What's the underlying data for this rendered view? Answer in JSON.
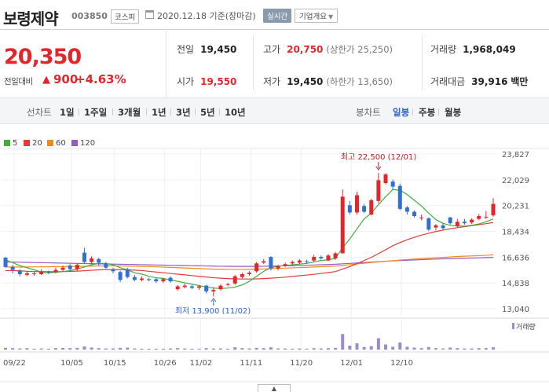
{
  "header": {
    "name": "보령제약",
    "code": "003850",
    "market": "코스피",
    "date": "2020.12.18 기준(장마감)",
    "realtime": "실시간",
    "overview": "기업개요"
  },
  "price": {
    "current": "20,350",
    "prev_label": "전일대비",
    "change_arrow": "▲",
    "change": "900",
    "change_pct": "+4.63%"
  },
  "stats": {
    "prev_close": {
      "label": "전일",
      "value": "19,450"
    },
    "open": {
      "label": "시가",
      "value": "19,550"
    },
    "high": {
      "label": "고가",
      "value": "20,750",
      "sub": "(상한가 25,250)"
    },
    "low": {
      "label": "저가",
      "value": "19,450",
      "sub": "(하한가 13,650)"
    },
    "volume": {
      "label": "거래량",
      "value": "1,968,049"
    },
    "amount": {
      "label": "거래대금",
      "value": "39,916",
      "unit": "백만"
    }
  },
  "toolbar": {
    "line_chart": "선차트",
    "periods": [
      "1일",
      "1주일",
      "3개월",
      "1년",
      "3년",
      "5년",
      "10년"
    ],
    "candle_chart": "봉차트",
    "candle_periods": [
      "일봉",
      "주봉",
      "월봉"
    ],
    "active_candle": "일봉"
  },
  "colors": {
    "up": "#e3262b",
    "down": "#2f6fd6",
    "ma5": "#3fae3a",
    "ma20": "#e33a3a",
    "ma60": "#f08a1c",
    "ma120": "#9b59c4",
    "volume": "#9b8ad3"
  },
  "chart_data": {
    "type": "candlestick",
    "legend": [
      {
        "name": "5",
        "color": "#3fae3a"
      },
      {
        "name": "20",
        "color": "#e33a3a"
      },
      {
        "name": "60",
        "color": "#f08a1c"
      },
      {
        "name": "120",
        "color": "#9b59c4"
      }
    ],
    "y_ticks": [
      "23,827",
      "22,029",
      "20,231",
      "18,434",
      "16,636",
      "14,838",
      "13,040"
    ],
    "ylim": [
      13040,
      23827
    ],
    "x_ticks": [
      "09/22",
      "10/05",
      "10/15",
      "10/26",
      "11/02",
      "11/11",
      "11/20",
      "12/01",
      "12/10"
    ],
    "max_label": "최고 22,500 (12/01)",
    "min_label": "최저 13,900 (11/02)",
    "volume_label": "거래량",
    "candles": [
      {
        "o": 16600,
        "c": 15950,
        "h": 16650,
        "l": 15900,
        "v": 0.06
      },
      {
        "o": 15950,
        "c": 15750,
        "h": 16100,
        "l": 15500,
        "v": 0.05
      },
      {
        "o": 15700,
        "c": 15450,
        "h": 15800,
        "l": 15300,
        "v": 0.04
      },
      {
        "o": 15400,
        "c": 15500,
        "h": 15650,
        "l": 15300,
        "v": 0.05
      },
      {
        "o": 15500,
        "c": 15500,
        "h": 15600,
        "l": 15350,
        "v": 0.03
      },
      {
        "o": 15450,
        "c": 15650,
        "h": 15800,
        "l": 15400,
        "v": 0.04
      },
      {
        "o": 15600,
        "c": 15550,
        "h": 15700,
        "l": 15450,
        "v": 0.03
      },
      {
        "o": 15600,
        "c": 15750,
        "h": 15900,
        "l": 15500,
        "v": 0.05
      },
      {
        "o": 15750,
        "c": 15900,
        "h": 16050,
        "l": 15650,
        "v": 0.06
      },
      {
        "o": 16050,
        "c": 15800,
        "h": 16150,
        "l": 15650,
        "v": 0.05
      },
      {
        "o": 15800,
        "c": 16100,
        "h": 16200,
        "l": 15700,
        "v": 0.06
      },
      {
        "o": 16950,
        "c": 16300,
        "h": 17300,
        "l": 16200,
        "v": 0.11
      },
      {
        "o": 16300,
        "c": 16550,
        "h": 16700,
        "l": 16150,
        "v": 0.07
      },
      {
        "o": 16500,
        "c": 16250,
        "h": 16600,
        "l": 16050,
        "v": 0.05
      },
      {
        "o": 16200,
        "c": 15900,
        "h": 16300,
        "l": 15800,
        "v": 0.04
      },
      {
        "o": 15750,
        "c": 15650,
        "h": 15900,
        "l": 15500,
        "v": 0.04
      },
      {
        "o": 15600,
        "c": 15050,
        "h": 15700,
        "l": 14900,
        "v": 0.06
      },
      {
        "o": 15800,
        "c": 15250,
        "h": 15900,
        "l": 15150,
        "v": 0.07
      },
      {
        "o": 15250,
        "c": 15050,
        "h": 15400,
        "l": 14950,
        "v": 0.04
      },
      {
        "o": 15050,
        "c": 15150,
        "h": 15300,
        "l": 14950,
        "v": 0.03
      },
      {
        "o": 15100,
        "c": 15050,
        "h": 15200,
        "l": 14950,
        "v": 0.03
      },
      {
        "o": 15100,
        "c": 14950,
        "h": 15200,
        "l": 14850,
        "v": 0.03
      },
      {
        "o": 14950,
        "c": 15100,
        "h": 15200,
        "l": 14850,
        "v": 0.03
      },
      {
        "o": 15200,
        "c": 14950,
        "h": 15300,
        "l": 14850,
        "v": 0.04
      },
      {
        "o": 14400,
        "c": 14600,
        "h": 14700,
        "l": 14300,
        "v": 0.05
      },
      {
        "o": 14550,
        "c": 14650,
        "h": 14800,
        "l": 14450,
        "v": 0.04
      },
      {
        "o": 14600,
        "c": 14500,
        "h": 14700,
        "l": 14400,
        "v": 0.03
      },
      {
        "o": 14500,
        "c": 14600,
        "h": 14700,
        "l": 14350,
        "v": 0.03
      },
      {
        "o": 14650,
        "c": 14250,
        "h": 14700,
        "l": 14100,
        "v": 0.05
      },
      {
        "o": 14250,
        "c": 14350,
        "h": 14550,
        "l": 13900,
        "v": 0.04
      },
      {
        "o": 14400,
        "c": 14650,
        "h": 14750,
        "l": 14300,
        "v": 0.04
      },
      {
        "o": 14700,
        "c": 14750,
        "h": 14850,
        "l": 14600,
        "v": 0.03
      },
      {
        "o": 14800,
        "c": 15300,
        "h": 15400,
        "l": 14700,
        "v": 0.08
      },
      {
        "o": 15250,
        "c": 15450,
        "h": 15550,
        "l": 15150,
        "v": 0.05
      },
      {
        "o": 15450,
        "c": 15550,
        "h": 15650,
        "l": 15350,
        "v": 0.04
      },
      {
        "o": 15650,
        "c": 16200,
        "h": 16300,
        "l": 15550,
        "v": 0.06
      },
      {
        "o": 16250,
        "c": 16350,
        "h": 16500,
        "l": 16150,
        "v": 0.05
      },
      {
        "o": 16650,
        "c": 15850,
        "h": 16700,
        "l": 15700,
        "v": 0.08
      },
      {
        "o": 15850,
        "c": 16000,
        "h": 16100,
        "l": 15700,
        "v": 0.04
      },
      {
        "o": 16050,
        "c": 16150,
        "h": 16250,
        "l": 15950,
        "v": 0.04
      },
      {
        "o": 16200,
        "c": 16300,
        "h": 16400,
        "l": 16050,
        "v": 0.03
      },
      {
        "o": 16250,
        "c": 16400,
        "h": 16500,
        "l": 16150,
        "v": 0.04
      },
      {
        "o": 16350,
        "c": 16300,
        "h": 16450,
        "l": 16200,
        "v": 0.03
      },
      {
        "o": 16400,
        "c": 16650,
        "h": 16800,
        "l": 16300,
        "v": 0.05
      },
      {
        "o": 16650,
        "c": 16550,
        "h": 16750,
        "l": 16450,
        "v": 0.04
      },
      {
        "o": 16400,
        "c": 16750,
        "h": 16850,
        "l": 16350,
        "v": 0.05
      },
      {
        "o": 16550,
        "c": 16900,
        "h": 17000,
        "l": 16450,
        "v": 0.06
      },
      {
        "o": 16900,
        "c": 20850,
        "h": 21350,
        "l": 16900,
        "v": 0.55
      },
      {
        "o": 20250,
        "c": 19750,
        "h": 20550,
        "l": 19600,
        "v": 0.14
      },
      {
        "o": 19750,
        "c": 20950,
        "h": 21200,
        "l": 19600,
        "v": 0.22
      },
      {
        "o": 20200,
        "c": 19800,
        "h": 20350,
        "l": 19700,
        "v": 0.09
      },
      {
        "o": 19600,
        "c": 20600,
        "h": 20700,
        "l": 19550,
        "v": 0.12
      },
      {
        "o": 20550,
        "c": 22000,
        "h": 22500,
        "l": 20400,
        "v": 0.4
      },
      {
        "o": 21800,
        "c": 22400,
        "h": 22500,
        "l": 21700,
        "v": 0.18
      },
      {
        "o": 21900,
        "c": 21550,
        "h": 22050,
        "l": 21350,
        "v": 0.1
      },
      {
        "o": 21600,
        "c": 20000,
        "h": 21750,
        "l": 19900,
        "v": 0.25
      },
      {
        "o": 20100,
        "c": 19800,
        "h": 20200,
        "l": 19600,
        "v": 0.1
      },
      {
        "o": 19800,
        "c": 19500,
        "h": 19900,
        "l": 19400,
        "v": 0.07
      },
      {
        "o": 19400,
        "c": 19400,
        "h": 19600,
        "l": 19200,
        "v": 0.05
      },
      {
        "o": 19350,
        "c": 18550,
        "h": 19400,
        "l": 18450,
        "v": 0.09
      },
      {
        "o": 18700,
        "c": 18850,
        "h": 18950,
        "l": 18500,
        "v": 0.05
      },
      {
        "o": 18850,
        "c": 18650,
        "h": 19000,
        "l": 18500,
        "v": 0.04
      },
      {
        "o": 19400,
        "c": 19000,
        "h": 19450,
        "l": 18900,
        "v": 0.07
      },
      {
        "o": 18800,
        "c": 19100,
        "h": 19300,
        "l": 18700,
        "v": 0.05
      },
      {
        "o": 19100,
        "c": 19000,
        "h": 19300,
        "l": 18900,
        "v": 0.04
      },
      {
        "o": 19050,
        "c": 19250,
        "h": 19350,
        "l": 18950,
        "v": 0.04
      },
      {
        "o": 19300,
        "c": 19500,
        "h": 19650,
        "l": 19200,
        "v": 0.05
      },
      {
        "o": 19450,
        "c": 19450,
        "h": 19850,
        "l": 19300,
        "v": 0.05
      },
      {
        "o": 19550,
        "c": 20350,
        "h": 20750,
        "l": 19450,
        "v": 0.08
      }
    ],
    "ma5": [
      16450,
      16250,
      16050,
      15900,
      15750,
      15600,
      15550,
      15580,
      15630,
      15700,
      15800,
      15950,
      16100,
      16200,
      16200,
      16100,
      15900,
      15750,
      15550,
      15450,
      15300,
      15200,
      15150,
      15050,
      14950,
      14850,
      14750,
      14650,
      14550,
      14480,
      14450,
      14480,
      14550,
      14700,
      14950,
      15300,
      15650,
      15900,
      16000,
      16050,
      16100,
      16150,
      16200,
      16300,
      16400,
      16450,
      16550,
      17300,
      17900,
      18600,
      19300,
      19700,
      20300,
      20850,
      21350,
      21300,
      21000,
      20600,
      20200,
      19700,
      19250,
      19000,
      18850,
      18800,
      18800,
      18850,
      18950,
      19100,
      19300
    ],
    "ma20": [
      15700,
      15700,
      15680,
      15650,
      15630,
      15620,
      15620,
      15620,
      15630,
      15640,
      15660,
      15690,
      15720,
      15750,
      15760,
      15770,
      15760,
      15750,
      15730,
      15700,
      15650,
      15600,
      15550,
      15500,
      15450,
      15400,
      15350,
      15300,
      15250,
      15200,
      15170,
      15140,
      15120,
      15110,
      15110,
      15120,
      15140,
      15170,
      15200,
      15240,
      15290,
      15340,
      15390,
      15440,
      15500,
      15560,
      15630,
      15800,
      15980,
      16180,
      16400,
      16620,
      16880,
      17150,
      17430,
      17650,
      17850,
      18020,
      18170,
      18300,
      18420,
      18520,
      18610,
      18690,
      18760,
      18830,
      18900,
      18970,
      19050
    ],
    "ma60": [
      15950,
      15950,
      15950,
      15950,
      15960,
      15960,
      15970,
      15970,
      15970,
      15980,
      15990,
      16000,
      16010,
      16020,
      16030,
      16030,
      16020,
      16010,
      16000,
      15990,
      15980,
      15960,
      15940,
      15920,
      15900,
      15880,
      15860,
      15840,
      15820,
      15800,
      15790,
      15780,
      15780,
      15780,
      15790,
      15800,
      15810,
      15830,
      15850,
      15870,
      15890,
      15910,
      15930,
      15950,
      15970,
      15990,
      16010,
      16060,
      16110,
      16160,
      16210,
      16260,
      16300,
      16350,
      16390,
      16430,
      16470,
      16500,
      16530,
      16560,
      16590,
      16620,
      16650,
      16680,
      16700,
      16720,
      16740,
      16760,
      16800
    ],
    "ma120": [
      16300,
      16290,
      16280,
      16270,
      16260,
      16250,
      16240,
      16230,
      16220,
      16210,
      16200,
      16190,
      16180,
      16170,
      16160,
      16150,
      16140,
      16130,
      16120,
      16110,
      16100,
      16090,
      16080,
      16070,
      16060,
      16050,
      16040,
      16030,
      16020,
      16010,
      16000,
      15995,
      15990,
      15990,
      15990,
      15995,
      16000,
      16010,
      16020,
      16030,
      16045,
      16060,
      16075,
      16090,
      16105,
      16120,
      16140,
      16170,
      16200,
      16230,
      16260,
      16290,
      16320,
      16350,
      16380,
      16400,
      16420,
      16440,
      16460,
      16480,
      16500,
      16515,
      16530,
      16545,
      16560,
      16575,
      16590,
      16605,
      16620
    ]
  }
}
